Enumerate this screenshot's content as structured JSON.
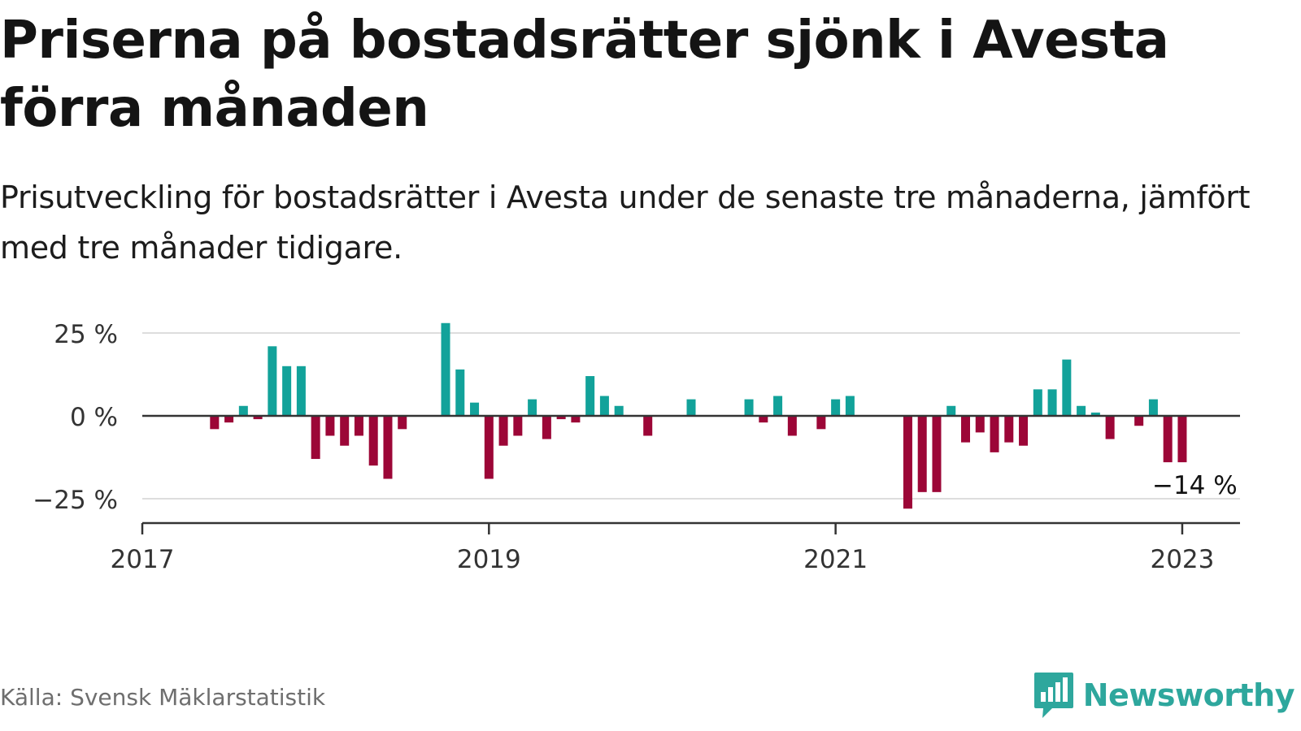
{
  "title": "Priserna på bostadsrätter sjönk i Avesta förra månaden",
  "subtitle": "Prisutveckling för bostadsrätter i Avesta under de senaste tre månaderna, jämfört med tre månader tidigare.",
  "source": "Källa: Svensk Mäklarstatistik",
  "brand": {
    "name": "Newsworthy",
    "icon": "newsworthy-logo-icon"
  },
  "colors": {
    "positive": "#12a29a",
    "negative": "#9c0637",
    "axis": "#333333",
    "grid": "#dddddd",
    "brand": "#2ea79d"
  },
  "chart_data": {
    "type": "bar",
    "x_axis": {
      "type": "date",
      "range": [
        "2017-01",
        "2023-05"
      ],
      "ticks": [
        "2017",
        "2019",
        "2021",
        "2023"
      ]
    },
    "y_axis": {
      "range": [
        -30,
        30
      ],
      "ticks": [
        25,
        0,
        -25
      ],
      "tick_labels": [
        "25 %",
        "0 %",
        "−25 %"
      ],
      "grid": true
    },
    "annotation": {
      "x": "2023-02",
      "text": "−14 %"
    },
    "series": [
      {
        "points": [
          {
            "x": "2017-06",
            "y": -4
          },
          {
            "x": "2017-07",
            "y": -2
          },
          {
            "x": "2017-08",
            "y": 3
          },
          {
            "x": "2017-09",
            "y": -1
          },
          {
            "x": "2017-10",
            "y": 21
          },
          {
            "x": "2017-11",
            "y": 15
          },
          {
            "x": "2017-12",
            "y": 15
          },
          {
            "x": "2018-01",
            "y": -13
          },
          {
            "x": "2018-02",
            "y": -6
          },
          {
            "x": "2018-03",
            "y": -9
          },
          {
            "x": "2018-04",
            "y": -6
          },
          {
            "x": "2018-05",
            "y": -15
          },
          {
            "x": "2018-06",
            "y": -19
          },
          {
            "x": "2018-07",
            "y": -4
          },
          {
            "x": "2018-10",
            "y": 28
          },
          {
            "x": "2018-11",
            "y": 14
          },
          {
            "x": "2018-12",
            "y": 4
          },
          {
            "x": "2019-01",
            "y": -19
          },
          {
            "x": "2019-02",
            "y": -9
          },
          {
            "x": "2019-03",
            "y": -6
          },
          {
            "x": "2019-04",
            "y": 5
          },
          {
            "x": "2019-05",
            "y": -7
          },
          {
            "x": "2019-06",
            "y": -1
          },
          {
            "x": "2019-07",
            "y": -2
          },
          {
            "x": "2019-08",
            "y": 12
          },
          {
            "x": "2019-09",
            "y": 6
          },
          {
            "x": "2019-10",
            "y": 3
          },
          {
            "x": "2019-12",
            "y": -6
          },
          {
            "x": "2020-03",
            "y": 5
          },
          {
            "x": "2020-07",
            "y": 5
          },
          {
            "x": "2020-08",
            "y": -2
          },
          {
            "x": "2020-09",
            "y": 6
          },
          {
            "x": "2020-10",
            "y": -6
          },
          {
            "x": "2020-12",
            "y": -4
          },
          {
            "x": "2021-01",
            "y": 5
          },
          {
            "x": "2021-02",
            "y": 6
          },
          {
            "x": "2021-06",
            "y": -28
          },
          {
            "x": "2021-07",
            "y": -23
          },
          {
            "x": "2021-08",
            "y": -23
          },
          {
            "x": "2021-09",
            "y": 3
          },
          {
            "x": "2021-10",
            "y": -8
          },
          {
            "x": "2021-11",
            "y": -5
          },
          {
            "x": "2021-12",
            "y": -11
          },
          {
            "x": "2022-01",
            "y": -8
          },
          {
            "x": "2022-02",
            "y": -9
          },
          {
            "x": "2022-03",
            "y": 8
          },
          {
            "x": "2022-04",
            "y": 8
          },
          {
            "x": "2022-05",
            "y": 17
          },
          {
            "x": "2022-06",
            "y": 3
          },
          {
            "x": "2022-07",
            "y": 1
          },
          {
            "x": "2022-08",
            "y": -7
          },
          {
            "x": "2022-10",
            "y": -3
          },
          {
            "x": "2022-11",
            "y": 5
          },
          {
            "x": "2022-12",
            "y": -14
          },
          {
            "x": "2023-01",
            "y": -14
          }
        ]
      }
    ]
  }
}
